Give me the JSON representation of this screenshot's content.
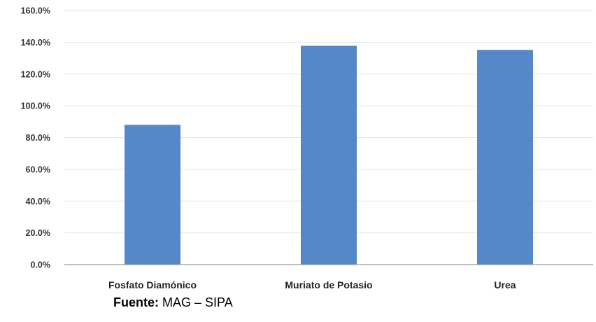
{
  "chart_data": {
    "type": "bar",
    "categories": [
      "Fosfato Diamónico",
      "Muriato de Potasio",
      "Urea"
    ],
    "values": [
      88.0,
      137.8,
      135.2
    ],
    "unit": "%",
    "ylim": [
      0,
      160
    ],
    "yticks": [
      0,
      20,
      40,
      60,
      80,
      100,
      120,
      140,
      160
    ],
    "ytick_labels": [
      "0.0%",
      "20.0%",
      "40.0%",
      "60.0%",
      "80.0%",
      "100.0%",
      "120.0%",
      "140.0%",
      "160.0%"
    ],
    "bar_color": "#5588C8",
    "grid": true,
    "legend": "none",
    "title": "",
    "xlabel": "",
    "ylabel": ""
  },
  "source": {
    "label": "Fuente:",
    "text": " MAG – SIPA"
  }
}
